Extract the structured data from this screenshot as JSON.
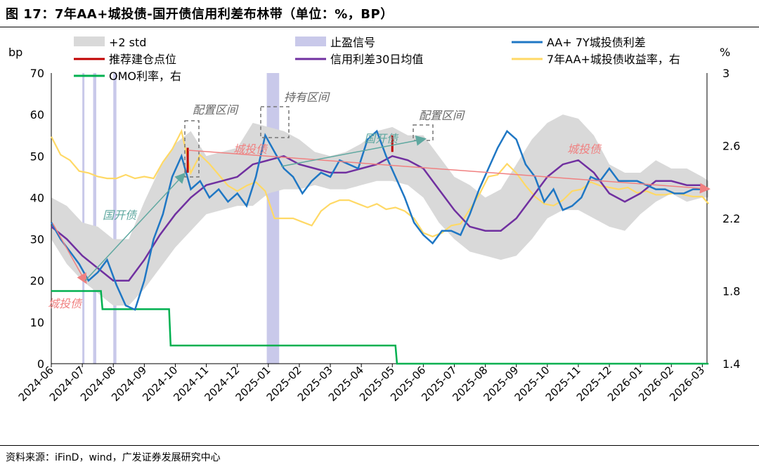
{
  "title": "图 17：7年AA+城投债-国开债信用利差布林带（单位：%，BP）",
  "source": "资料来源：iFinD，wind，广发证券发展研究中心",
  "chart_data": {
    "type": "line",
    "title": "7年AA+城投债-国开债信用利差布林带（单位：%，BP）",
    "left_axis": {
      "label": "bp",
      "ylim": [
        0,
        70
      ],
      "ticks": [
        0,
        10,
        20,
        30,
        40,
        50,
        60,
        70
      ]
    },
    "right_axis": {
      "label": "%",
      "ylim": [
        1.4,
        3.0
      ],
      "ticks": [
        1.4,
        1.8,
        2.2,
        2.6,
        3.0
      ],
      "tick_labels": [
        "1.4",
        "1.8",
        "2.2",
        "2.6",
        "3"
      ]
    },
    "x_labels": [
      "2024-06",
      "2024-07",
      "2024-08",
      "2024-09",
      "2024-10",
      "2024-11",
      "2024-12",
      "2025-01",
      "2025-02",
      "2025-03",
      "2025-04",
      "2025-05",
      "2025-06",
      "2025-07",
      "2025-08",
      "2025-09",
      "2025-10",
      "2025-11",
      "2025-12",
      "2026-01",
      "2026-02",
      "2026-03"
    ],
    "legend": [
      {
        "name": "+2 std",
        "kind": "band",
        "color": "#d9d9d9"
      },
      {
        "name": "止盈信号",
        "kind": "band",
        "color": "#c9c9ea"
      },
      {
        "name": "AA+ 7Y城投债利差",
        "kind": "line",
        "color": "#1f77c4"
      },
      {
        "name": "推荐建仓点位",
        "kind": "line",
        "color": "#c00000"
      },
      {
        "name": "信用利差30日均值",
        "kind": "line",
        "color": "#7030a0"
      },
      {
        "name": "7年AA+城投债收益率，右",
        "kind": "line",
        "color": "#ffd966"
      },
      {
        "name": "OMO利率，右",
        "kind": "line",
        "color": "#00b050"
      }
    ],
    "spread": {
      "x": [
        0,
        0.3,
        0.6,
        0.9,
        1.2,
        1.5,
        1.8,
        2.1,
        2.4,
        2.7,
        3.0,
        3.3,
        3.6,
        3.9,
        4.2,
        4.5,
        4.8,
        5.1,
        5.4,
        5.7,
        6.0,
        6.3,
        6.6,
        6.9,
        7.2,
        7.5,
        7.8,
        8.1,
        8.4,
        8.7,
        9.0,
        9.3,
        9.6,
        9.9,
        10.2,
        10.5,
        10.8,
        11.1,
        11.4,
        11.7,
        12.0,
        12.3,
        12.6,
        12.9,
        13.2,
        13.5,
        13.8,
        14.1,
        14.4,
        14.7,
        15.0,
        15.3,
        15.6,
        15.9,
        16.2,
        16.5,
        16.8,
        17.1,
        17.4,
        17.7,
        18.0,
        18.3,
        18.6,
        18.9,
        19.2,
        19.5,
        19.8,
        20.1,
        20.4,
        20.7,
        21.0,
        21.2
      ],
      "values": [
        34,
        30,
        27,
        24,
        20,
        22,
        25,
        19,
        14,
        13,
        20,
        30,
        36,
        45,
        50,
        42,
        44,
        40,
        42,
        39,
        41,
        38,
        45,
        55,
        51,
        47,
        45,
        41,
        44,
        46,
        45,
        49,
        48,
        47,
        54,
        56,
        50,
        45,
        40,
        34,
        31,
        29,
        32,
        32,
        31,
        36,
        42,
        47,
        52,
        56,
        54,
        48,
        45,
        39,
        42,
        37,
        38,
        40,
        45,
        44,
        47,
        44,
        44,
        44,
        43,
        42,
        42,
        41,
        41,
        42,
        42,
        42
      ]
    },
    "spread_ma30": {
      "x": [
        0,
        0.5,
        1,
        1.5,
        2,
        2.5,
        3,
        3.5,
        4,
        4.5,
        5,
        5.5,
        6,
        6.5,
        7,
        7.5,
        8,
        8.5,
        9,
        9.5,
        10,
        10.5,
        11,
        11.5,
        12,
        12.5,
        13,
        13.5,
        14,
        14.5,
        15,
        15.5,
        16,
        16.5,
        17,
        17.5,
        18,
        18.5,
        19,
        19.5,
        20,
        20.5,
        21,
        21.2
      ],
      "values": [
        33,
        30,
        26,
        23,
        20,
        20,
        25,
        31,
        36,
        40,
        43,
        44,
        45,
        48,
        49,
        50,
        48,
        47,
        46,
        46,
        47,
        48,
        50,
        49,
        47,
        42,
        37,
        33,
        32,
        32,
        35,
        40,
        45,
        48,
        49,
        46,
        41,
        39,
        41,
        44,
        44,
        43,
        43,
        42
      ]
    },
    "band_upper": {
      "x": [
        0,
        0.5,
        1,
        1.5,
        2,
        2.5,
        3,
        3.5,
        4,
        4.5,
        5,
        5.5,
        6,
        6.5,
        7,
        7.5,
        8,
        8.5,
        9,
        9.5,
        10,
        10.5,
        11,
        11.5,
        12,
        12.5,
        13,
        13.5,
        14,
        14.5,
        15,
        15.5,
        16,
        16.5,
        17,
        17.5,
        18,
        18.5,
        19,
        19.5,
        20,
        20.5,
        21,
        21.2
      ],
      "values": [
        40,
        38,
        34,
        33,
        30,
        30,
        39,
        47,
        53,
        56,
        50,
        51,
        52,
        58,
        57,
        56,
        54,
        51,
        50,
        51,
        53,
        56,
        57,
        55,
        55,
        50,
        45,
        43,
        40,
        42,
        48,
        54,
        58,
        60,
        59,
        55,
        48,
        46,
        46,
        49,
        47,
        47,
        45,
        44
      ]
    },
    "band_lower": {
      "x": [
        0,
        0.5,
        1,
        1.5,
        2,
        2.5,
        3,
        3.5,
        4,
        4.5,
        5,
        5.5,
        6,
        6.5,
        7,
        7.5,
        8,
        8.5,
        9,
        9.5,
        10,
        10.5,
        11,
        11.5,
        12,
        12.5,
        13,
        13.5,
        14,
        14.5,
        15,
        15.5,
        16,
        16.5,
        17,
        17.5,
        18,
        18.5,
        19,
        19.5,
        20,
        20.5,
        21,
        21.2
      ],
      "values": [
        30,
        24,
        20,
        17,
        14,
        14,
        18,
        23,
        28,
        32,
        36,
        37,
        38,
        38,
        41,
        42,
        42,
        43,
        42,
        42,
        43,
        44,
        44,
        43,
        40,
        34,
        30,
        27,
        26,
        25,
        26,
        30,
        35,
        37,
        37,
        35,
        33,
        32,
        36,
        39,
        41,
        39,
        40,
        40
      ]
    },
    "yield_right": {
      "x": [
        0,
        0.3,
        0.6,
        0.9,
        1.2,
        1.5,
        1.8,
        2.1,
        2.4,
        2.7,
        3.0,
        3.3,
        3.6,
        3.9,
        4.2,
        4.5,
        4.8,
        5.1,
        5.4,
        5.7,
        6.0,
        6.3,
        6.6,
        6.9,
        7.2,
        7.5,
        7.8,
        8.1,
        8.4,
        8.7,
        9.0,
        9.3,
        9.6,
        9.9,
        10.2,
        10.5,
        10.8,
        11.1,
        11.4,
        11.7,
        12.0,
        12.3,
        12.6,
        12.9,
        13.2,
        13.5,
        13.8,
        14.1,
        14.4,
        14.7,
        15.0,
        15.3,
        15.6,
        15.9,
        16.2,
        16.5,
        16.8,
        17.1,
        17.4,
        17.7,
        18.0,
        18.3,
        18.6,
        18.9,
        19.2,
        19.5,
        19.8,
        20.1,
        20.4,
        20.7,
        21.0,
        21.2
      ],
      "values": [
        2.65,
        2.55,
        2.52,
        2.46,
        2.45,
        2.43,
        2.42,
        2.42,
        2.44,
        2.42,
        2.43,
        2.42,
        2.51,
        2.58,
        2.68,
        2.45,
        2.55,
        2.5,
        2.44,
        2.38,
        2.35,
        2.38,
        2.4,
        2.35,
        2.2,
        2.2,
        2.2,
        2.18,
        2.16,
        2.24,
        2.28,
        2.3,
        2.3,
        2.28,
        2.26,
        2.28,
        2.25,
        2.26,
        2.24,
        2.2,
        2.12,
        2.1,
        2.12,
        2.16,
        2.17,
        2.25,
        2.33,
        2.43,
        2.44,
        2.5,
        2.45,
        2.38,
        2.32,
        2.28,
        2.27,
        2.3,
        2.35,
        2.36,
        2.4,
        2.38,
        2.37,
        2.36,
        2.37,
        2.34,
        2.35,
        2.33,
        2.33,
        2.34,
        2.33,
        2.32,
        2.32,
        2.28
      ]
    },
    "omo_right": {
      "x": [
        0,
        1.6,
        1.65,
        3.8,
        3.85,
        11.1,
        11.15,
        21.2
      ],
      "values": [
        1.8,
        1.8,
        1.7,
        1.7,
        1.5,
        1.5,
        1.4,
        1.4
      ]
    },
    "take_profit_bands": [
      [
        1.0,
        1.05
      ],
      [
        1.35,
        1.45
      ],
      [
        2.0,
        2.1
      ],
      [
        6.95,
        7.35
      ]
    ],
    "entry_points": [
      {
        "x": 4.4,
        "from": 46,
        "to": 52
      },
      {
        "x": 11.0,
        "from": 51,
        "to": 55
      }
    ],
    "annotations": [
      {
        "text": "配置区间",
        "color": "#666666"
      },
      {
        "text": "持有区间",
        "color": "#666666"
      },
      {
        "text": "配置区间",
        "color": "#666666"
      },
      {
        "text": "城投债",
        "color": "#f08080"
      },
      {
        "text": "城投债",
        "color": "#f08080"
      },
      {
        "text": "城投债",
        "color": "#f08080"
      },
      {
        "text": "国开债",
        "color": "#5fa8a0"
      },
      {
        "text": "国开债",
        "color": "#5fa8a0"
      }
    ]
  }
}
